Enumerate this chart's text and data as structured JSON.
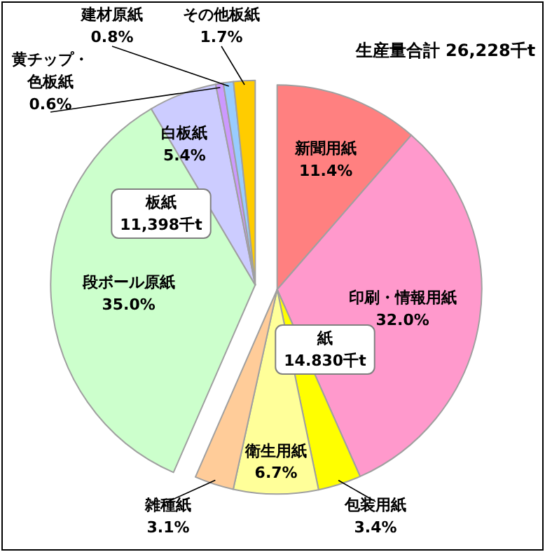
{
  "chart_data": {
    "type": "pie",
    "title": "生産量合計 26,228千t",
    "categories": [
      "新聞用紙",
      "印刷・情報用紙",
      "包装用紙",
      "衛生用紙",
      "雑種紙",
      "段ボール原紙",
      "白板紙",
      "黄チップ・色板紙",
      "建材原紙",
      "その他板紙"
    ],
    "values": [
      11.4,
      32.0,
      3.4,
      6.7,
      3.1,
      35.0,
      5.4,
      0.6,
      0.8,
      1.7
    ],
    "value_labels": [
      "11.4%",
      "32.0%",
      "3.4%",
      "6.7%",
      "3.1%",
      "35.0%",
      "5.4%",
      "0.6%",
      "0.8%",
      "1.7%"
    ],
    "colors": [
      "#ff8080",
      "#ff99cc",
      "#ffff00",
      "#ffff99",
      "#ffcc99",
      "#ccffcc",
      "#ccccff",
      "#cc99ff",
      "#99ccff",
      "#ffcc00"
    ],
    "annotations": [
      "紙\n14.830千t",
      "板紙\n11,398千t"
    ]
  }
}
